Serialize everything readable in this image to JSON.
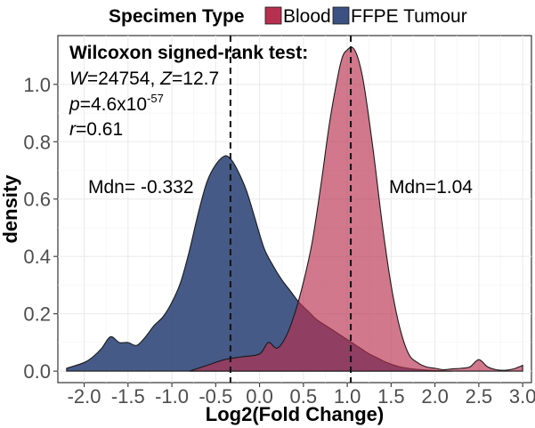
{
  "chart_data": {
    "type": "area",
    "subtype": "density",
    "title": "",
    "xlabel": "Log2(Fold Change)",
    "ylabel": "density",
    "xlim": [
      -2.3,
      3.1
    ],
    "ylim": [
      -0.04,
      1.17
    ],
    "x_ticks": [
      "-2.0",
      "-1.5",
      "-1.0",
      "-0.5",
      "0.0",
      "0.5",
      "1.0",
      "1.5",
      "2.0",
      "2.5",
      "3.0"
    ],
    "x_tick_values": [
      -2.0,
      -1.5,
      -1.0,
      -0.5,
      0.0,
      0.5,
      1.0,
      1.5,
      2.0,
      2.5,
      3.0
    ],
    "y_ticks": [
      "0.0",
      "0.2",
      "0.4",
      "0.6",
      "0.8",
      "1.0"
    ],
    "y_tick_values": [
      0.0,
      0.2,
      0.4,
      0.6,
      0.8,
      1.0
    ],
    "grid": true,
    "legend": {
      "title": "Specimen Type",
      "position": "top",
      "entries": [
        {
          "label": "Blood",
          "color": "#B8304F"
        },
        {
          "label": "FFPE Tumour",
          "color": "#3B5181"
        }
      ]
    },
    "series": [
      {
        "name": "FFPE Tumour",
        "color": "#3B5181",
        "x": [
          -2.2,
          -2.0,
          -1.9,
          -1.8,
          -1.7,
          -1.6,
          -1.5,
          -1.4,
          -1.3,
          -1.2,
          -1.1,
          -1.0,
          -0.9,
          -0.8,
          -0.7,
          -0.6,
          -0.5,
          -0.4,
          -0.33,
          -0.25,
          -0.15,
          -0.05,
          0.05,
          0.15,
          0.25,
          0.35,
          0.45,
          0.55,
          0.65,
          0.75,
          0.85,
          0.95,
          1.05,
          1.15,
          1.25,
          1.35,
          1.45,
          1.6,
          1.8,
          2.0,
          2.2
        ],
        "y": [
          0.01,
          0.03,
          0.05,
          0.08,
          0.12,
          0.1,
          0.1,
          0.09,
          0.12,
          0.16,
          0.19,
          0.24,
          0.31,
          0.42,
          0.55,
          0.66,
          0.72,
          0.75,
          0.74,
          0.7,
          0.63,
          0.53,
          0.43,
          0.37,
          0.32,
          0.28,
          0.24,
          0.21,
          0.18,
          0.16,
          0.14,
          0.12,
          0.1,
          0.08,
          0.06,
          0.045,
          0.03,
          0.015,
          0.006,
          0.002,
          0.0
        ]
      },
      {
        "name": "Blood",
        "color": "#B8304F",
        "x": [
          -0.8,
          -0.6,
          -0.4,
          -0.2,
          0.0,
          0.1,
          0.2,
          0.3,
          0.4,
          0.5,
          0.6,
          0.7,
          0.8,
          0.9,
          0.95,
          1.0,
          1.05,
          1.1,
          1.15,
          1.2,
          1.3,
          1.4,
          1.5,
          1.6,
          1.7,
          1.8,
          1.9,
          2.0,
          2.1,
          2.2,
          2.3,
          2.4,
          2.5,
          2.6,
          2.7,
          2.8,
          2.9,
          3.0
        ],
        "y": [
          0.0,
          0.02,
          0.04,
          0.05,
          0.06,
          0.1,
          0.08,
          0.12,
          0.2,
          0.31,
          0.45,
          0.65,
          0.87,
          1.04,
          1.1,
          1.12,
          1.13,
          1.11,
          1.06,
          0.98,
          0.76,
          0.51,
          0.3,
          0.15,
          0.06,
          0.03,
          0.015,
          0.01,
          0.005,
          0.008,
          0.01,
          0.015,
          0.04,
          0.015,
          0.005,
          0.003,
          0.008,
          0.02
        ]
      }
    ],
    "vlines": [
      {
        "x": -0.332,
        "style": "dashed"
      },
      {
        "x": 1.04,
        "style": "dashed"
      }
    ],
    "annotations": {
      "test_title": "Wilcoxon signed-rank test:",
      "w_label": "W",
      "w_value": "=24754, ",
      "z_label": "Z",
      "z_value": "=12.7",
      "p_label": "p",
      "p_value": "=4.6x10",
      "p_exponent": "-57",
      "r_label": "r",
      "r_value": "=0.61",
      "median_ffpe": "Mdn= -0.332",
      "median_blood": "Mdn=1.04"
    }
  }
}
